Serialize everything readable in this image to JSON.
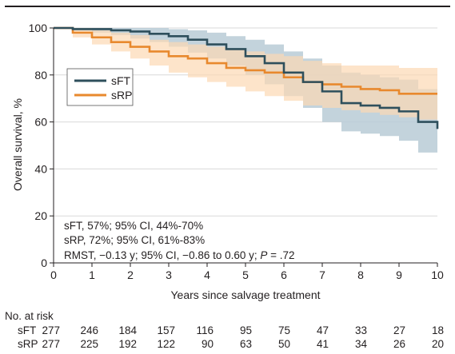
{
  "chart_data": {
    "type": "line",
    "subtype": "kaplan-meier survival curve with confidence bands",
    "title": "",
    "xlabel": "Years since salvage treatment",
    "ylabel": "Overall survival, %",
    "xlim": [
      0,
      10
    ],
    "ylim": [
      0,
      100
    ],
    "x_ticks": [
      0,
      1,
      2,
      3,
      4,
      5,
      6,
      7,
      8,
      9,
      10
    ],
    "y_ticks": [
      0,
      20,
      40,
      60,
      80,
      100
    ],
    "grid": "horizontal gridlines",
    "legend_position": "upper-left",
    "series": [
      {
        "name": "sFT",
        "color": "#2e4f5c",
        "band_color": "#b9cbd6",
        "x": [
          0,
          0.5,
          1.0,
          1.5,
          2.0,
          2.5,
          3.0,
          3.5,
          4.0,
          4.5,
          5.0,
          5.5,
          6.0,
          6.5,
          7.0,
          7.5,
          8.0,
          8.5,
          9.0,
          9.5,
          10.0
        ],
        "y": [
          100,
          99.5,
          99.5,
          99,
          98.5,
          97.5,
          96.5,
          95,
          93,
          91,
          88,
          85,
          81,
          77,
          73,
          68,
          67,
          66,
          64.5,
          60,
          57
        ],
        "ci_lower": [
          100,
          99,
          98,
          97,
          95.5,
          94,
          92,
          89.5,
          87,
          84,
          80,
          76,
          71,
          66,
          60,
          56,
          55,
          54,
          52,
          47,
          44
        ],
        "ci_upper": [
          100,
          100,
          100,
          100,
          100,
          100,
          99.5,
          99,
          98,
          96.5,
          95,
          93,
          90,
          87,
          84,
          81,
          80,
          79,
          78,
          74,
          70
        ]
      },
      {
        "name": "sRP",
        "color": "#e8892e",
        "band_color": "#fcd9b4",
        "x": [
          0,
          0.5,
          1.0,
          1.5,
          2.0,
          2.5,
          3.0,
          3.5,
          4.0,
          4.5,
          5.0,
          5.5,
          6.0,
          6.5,
          7.0,
          7.5,
          8.0,
          8.5,
          9.0,
          9.5,
          10.0
        ],
        "y": [
          100,
          98,
          96,
          94,
          92,
          90,
          88,
          87,
          85,
          83,
          82,
          81,
          79,
          77,
          76,
          75,
          74,
          73.5,
          72,
          72,
          72
        ],
        "ci_lower": [
          100,
          96,
          93,
          90,
          87,
          84,
          81,
          79,
          77,
          75,
          73,
          71,
          69,
          67,
          66,
          65,
          64,
          63,
          62,
          61,
          61
        ],
        "ci_upper": [
          100,
          100,
          99,
          98,
          97,
          95,
          94,
          93,
          92,
          91,
          90,
          89,
          88,
          86,
          85,
          84,
          84,
          84,
          83,
          83,
          83
        ]
      }
    ],
    "annotations": [
      "sFT, 57%; 95% CI, 44%-70%",
      "sRP, 72%; 95% CI, 61%-83%",
      "RMST, −0.13 y; 95% CI, −0.86 to 0.60 y; "
    ],
    "annotation_p_label": "P",
    "annotation_p_value": " = .72",
    "risk_table": {
      "title": "No. at risk",
      "rows": [
        {
          "label": "sFT",
          "values": [
            "277",
            "246",
            "184",
            "157",
            "116",
            "95",
            "75",
            "47",
            "33",
            "27",
            "18"
          ]
        },
        {
          "label": "sRP",
          "values": [
            "277",
            "225",
            "192",
            "122",
            "90",
            "63",
            "50",
            "41",
            "34",
            "26",
            "20"
          ]
        }
      ]
    }
  }
}
